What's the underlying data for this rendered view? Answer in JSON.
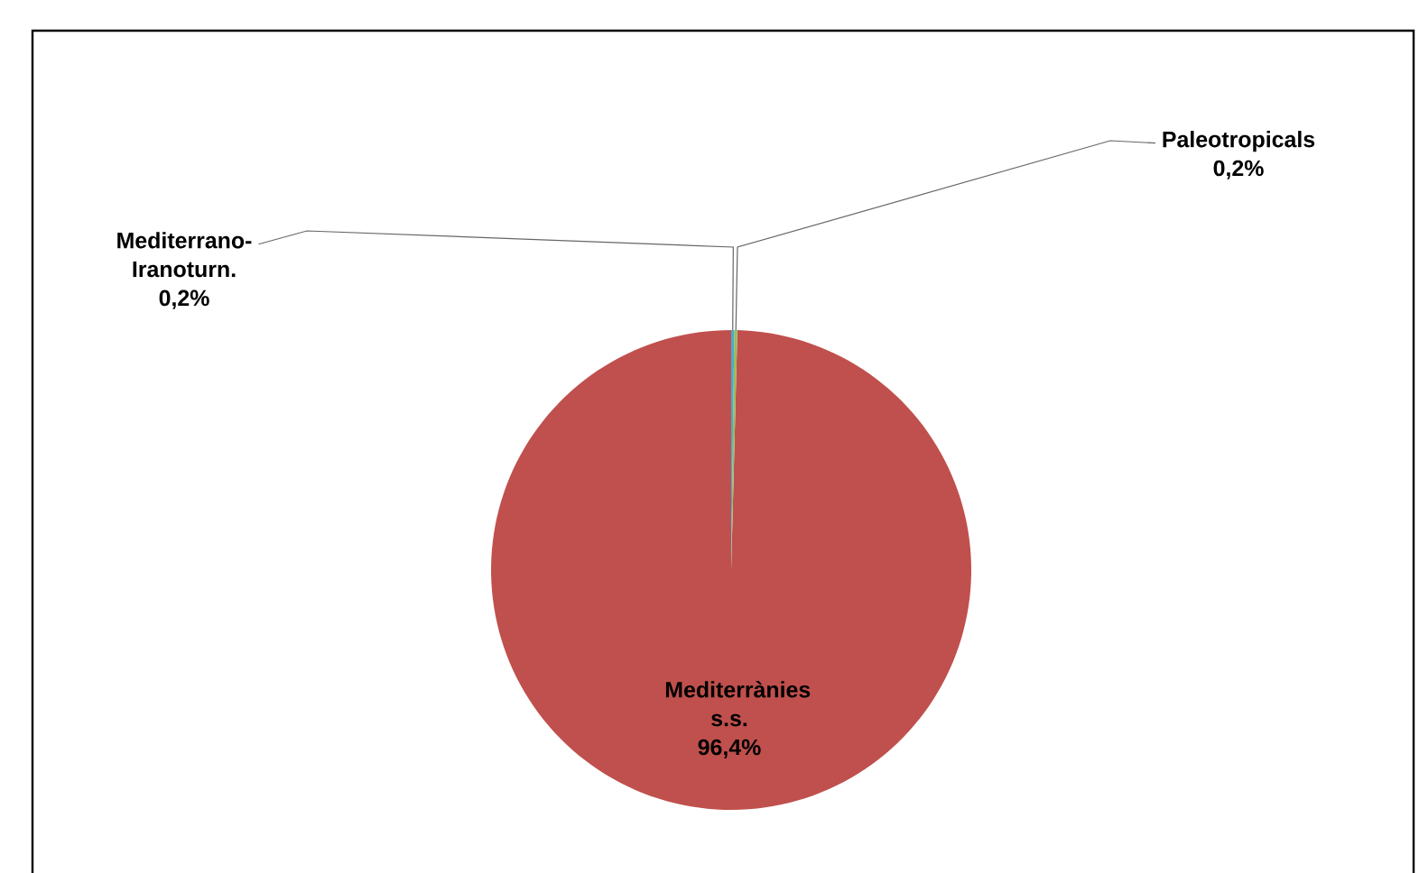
{
  "chart_data": {
    "type": "pie",
    "categories": [
      "Mediterrànies s.s.",
      "Paleotropicals",
      "Mediterrano-Iranoturn."
    ],
    "values": [
      96.4,
      0.2,
      0.2
    ],
    "value_labels": [
      "96,4%",
      "0,2%",
      "0,2%"
    ],
    "colors": [
      "#c0504d",
      "#9bbb59",
      "#4bacc6"
    ]
  }
}
